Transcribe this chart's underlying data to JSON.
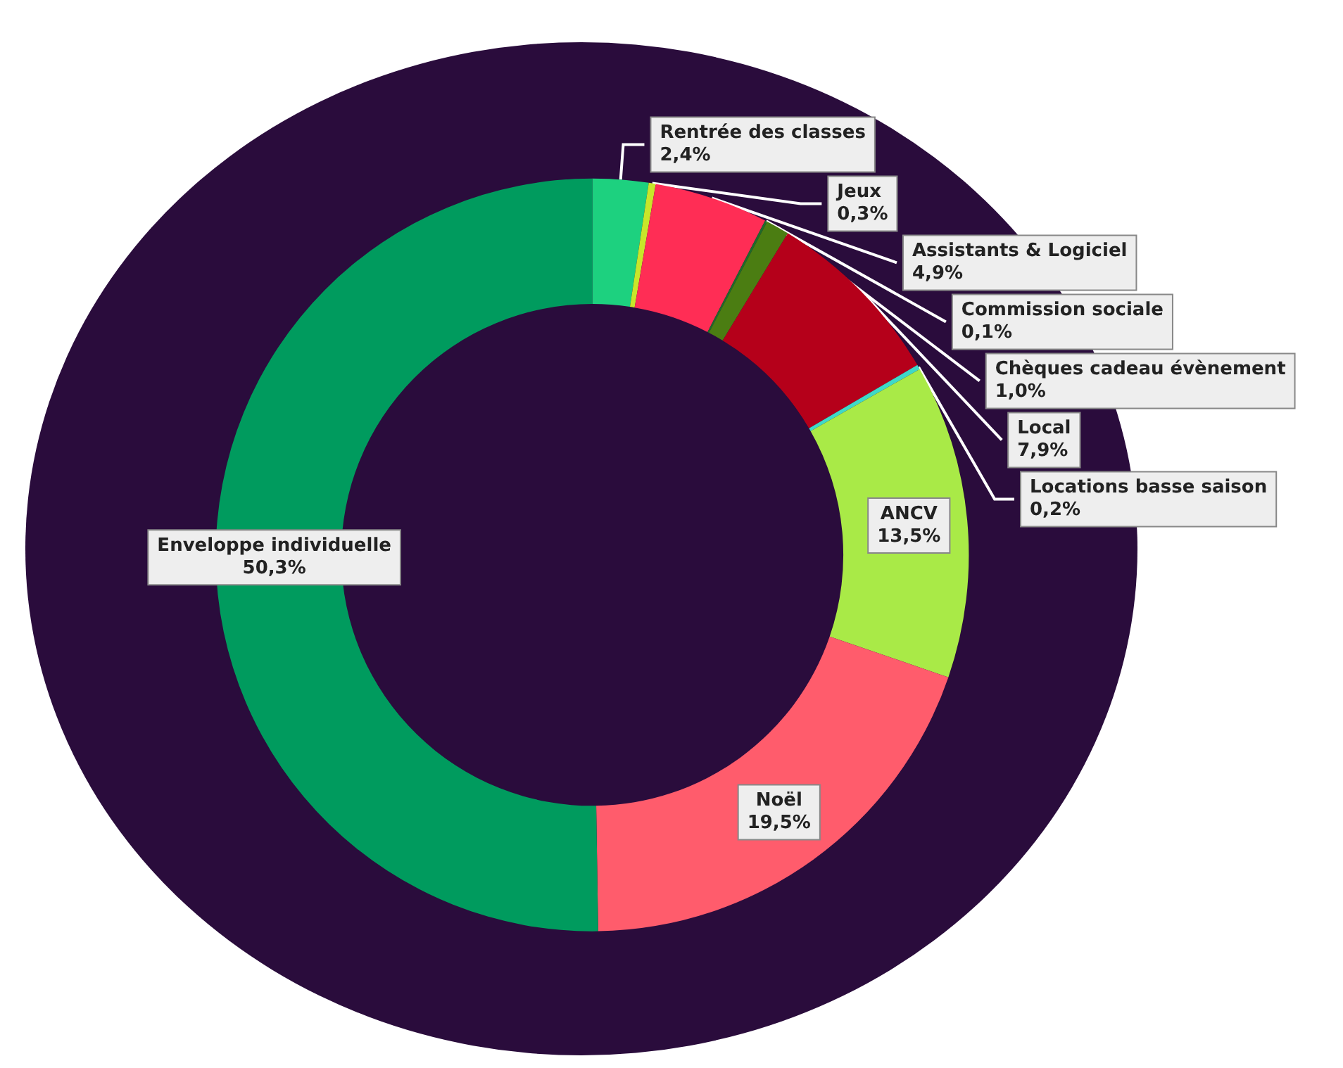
{
  "chart_data": {
    "type": "donut",
    "categories": [
      "Rentrée des classes",
      "Jeux",
      "Assistants & Logiciel",
      "Commission sociale",
      "Chèques cadeau évènement",
      "Local",
      "Locations basse saison",
      "ANCV",
      "Noël",
      "Enveloppe individuelle"
    ],
    "values": [
      2.4,
      0.3,
      4.9,
      0.1,
      1.0,
      7.9,
      0.2,
      13.5,
      19.5,
      50.3
    ],
    "value_labels": [
      "2,4%",
      "0,3%",
      "4,9%",
      "0,1%",
      "1,0%",
      "7,9%",
      "0,2%",
      "13,5%",
      "19,5%",
      "50,3%"
    ],
    "colors": [
      "#1dd17f",
      "#c8e62a",
      "#ff2d55",
      "#1f6b2a",
      "#4b7d12",
      "#b5001a",
      "#3fd9c8",
      "#a9ea47",
      "#ff5c6c",
      "#009b5e"
    ],
    "legend": false
  }
}
